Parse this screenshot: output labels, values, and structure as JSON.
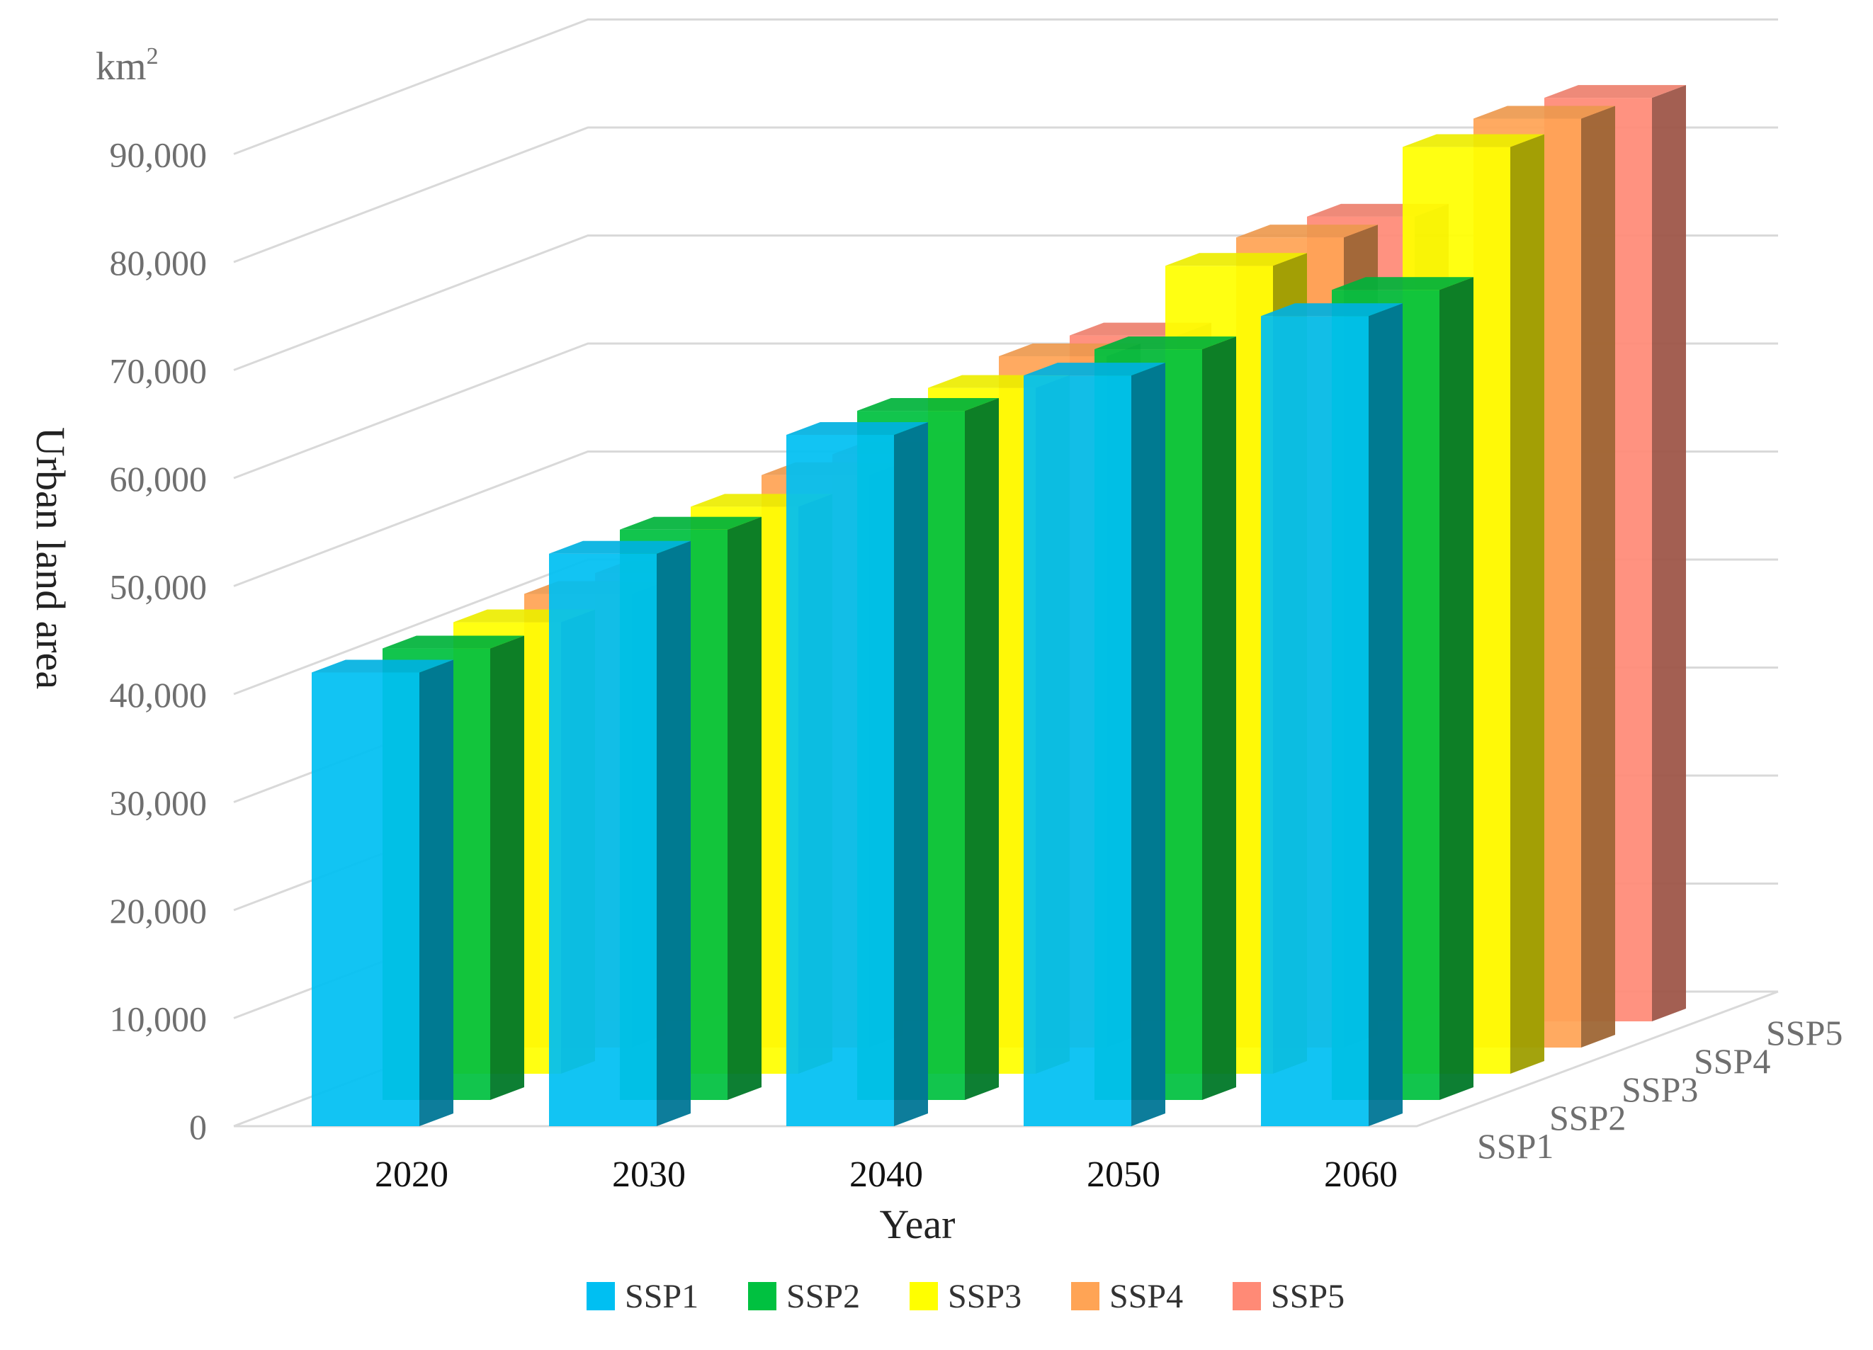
{
  "chart_data": {
    "type": "bar",
    "style": "3d-clustered-column",
    "unit_label": "km",
    "unit_superscript": "2",
    "ylabel": "Urban land area",
    "xlabel": "Year",
    "ylim": [
      0,
      90000
    ],
    "yticks": [
      0,
      10000,
      20000,
      30000,
      40000,
      50000,
      60000,
      70000,
      80000,
      90000
    ],
    "ytick_labels": [
      "0",
      "10,000",
      "20,000",
      "30,000",
      "40,000",
      "50,000",
      "60,000",
      "70,000",
      "80,000",
      "90,000"
    ],
    "categories": [
      "2020",
      "2030",
      "2040",
      "2050",
      "2060"
    ],
    "series": [
      {
        "name": "SSP1",
        "color": "#00BFF2",
        "values": [
          42000,
          53000,
          64000,
          69500,
          75000
        ]
      },
      {
        "name": "SSP2",
        "color": "#00C140",
        "values": [
          41800,
          52800,
          63800,
          69500,
          75000
        ]
      },
      {
        "name": "SSP3",
        "color": "#FFFF00",
        "values": [
          41800,
          52500,
          63500,
          74800,
          85800
        ]
      },
      {
        "name": "SSP4",
        "color": "#FFA455",
        "values": [
          42000,
          53000,
          64000,
          75000,
          86000
        ]
      },
      {
        "name": "SSP5",
        "color": "#FF8A76",
        "values": [
          41500,
          52500,
          63500,
          74500,
          85500
        ]
      }
    ],
    "grid": true,
    "legend": "bottom"
  }
}
